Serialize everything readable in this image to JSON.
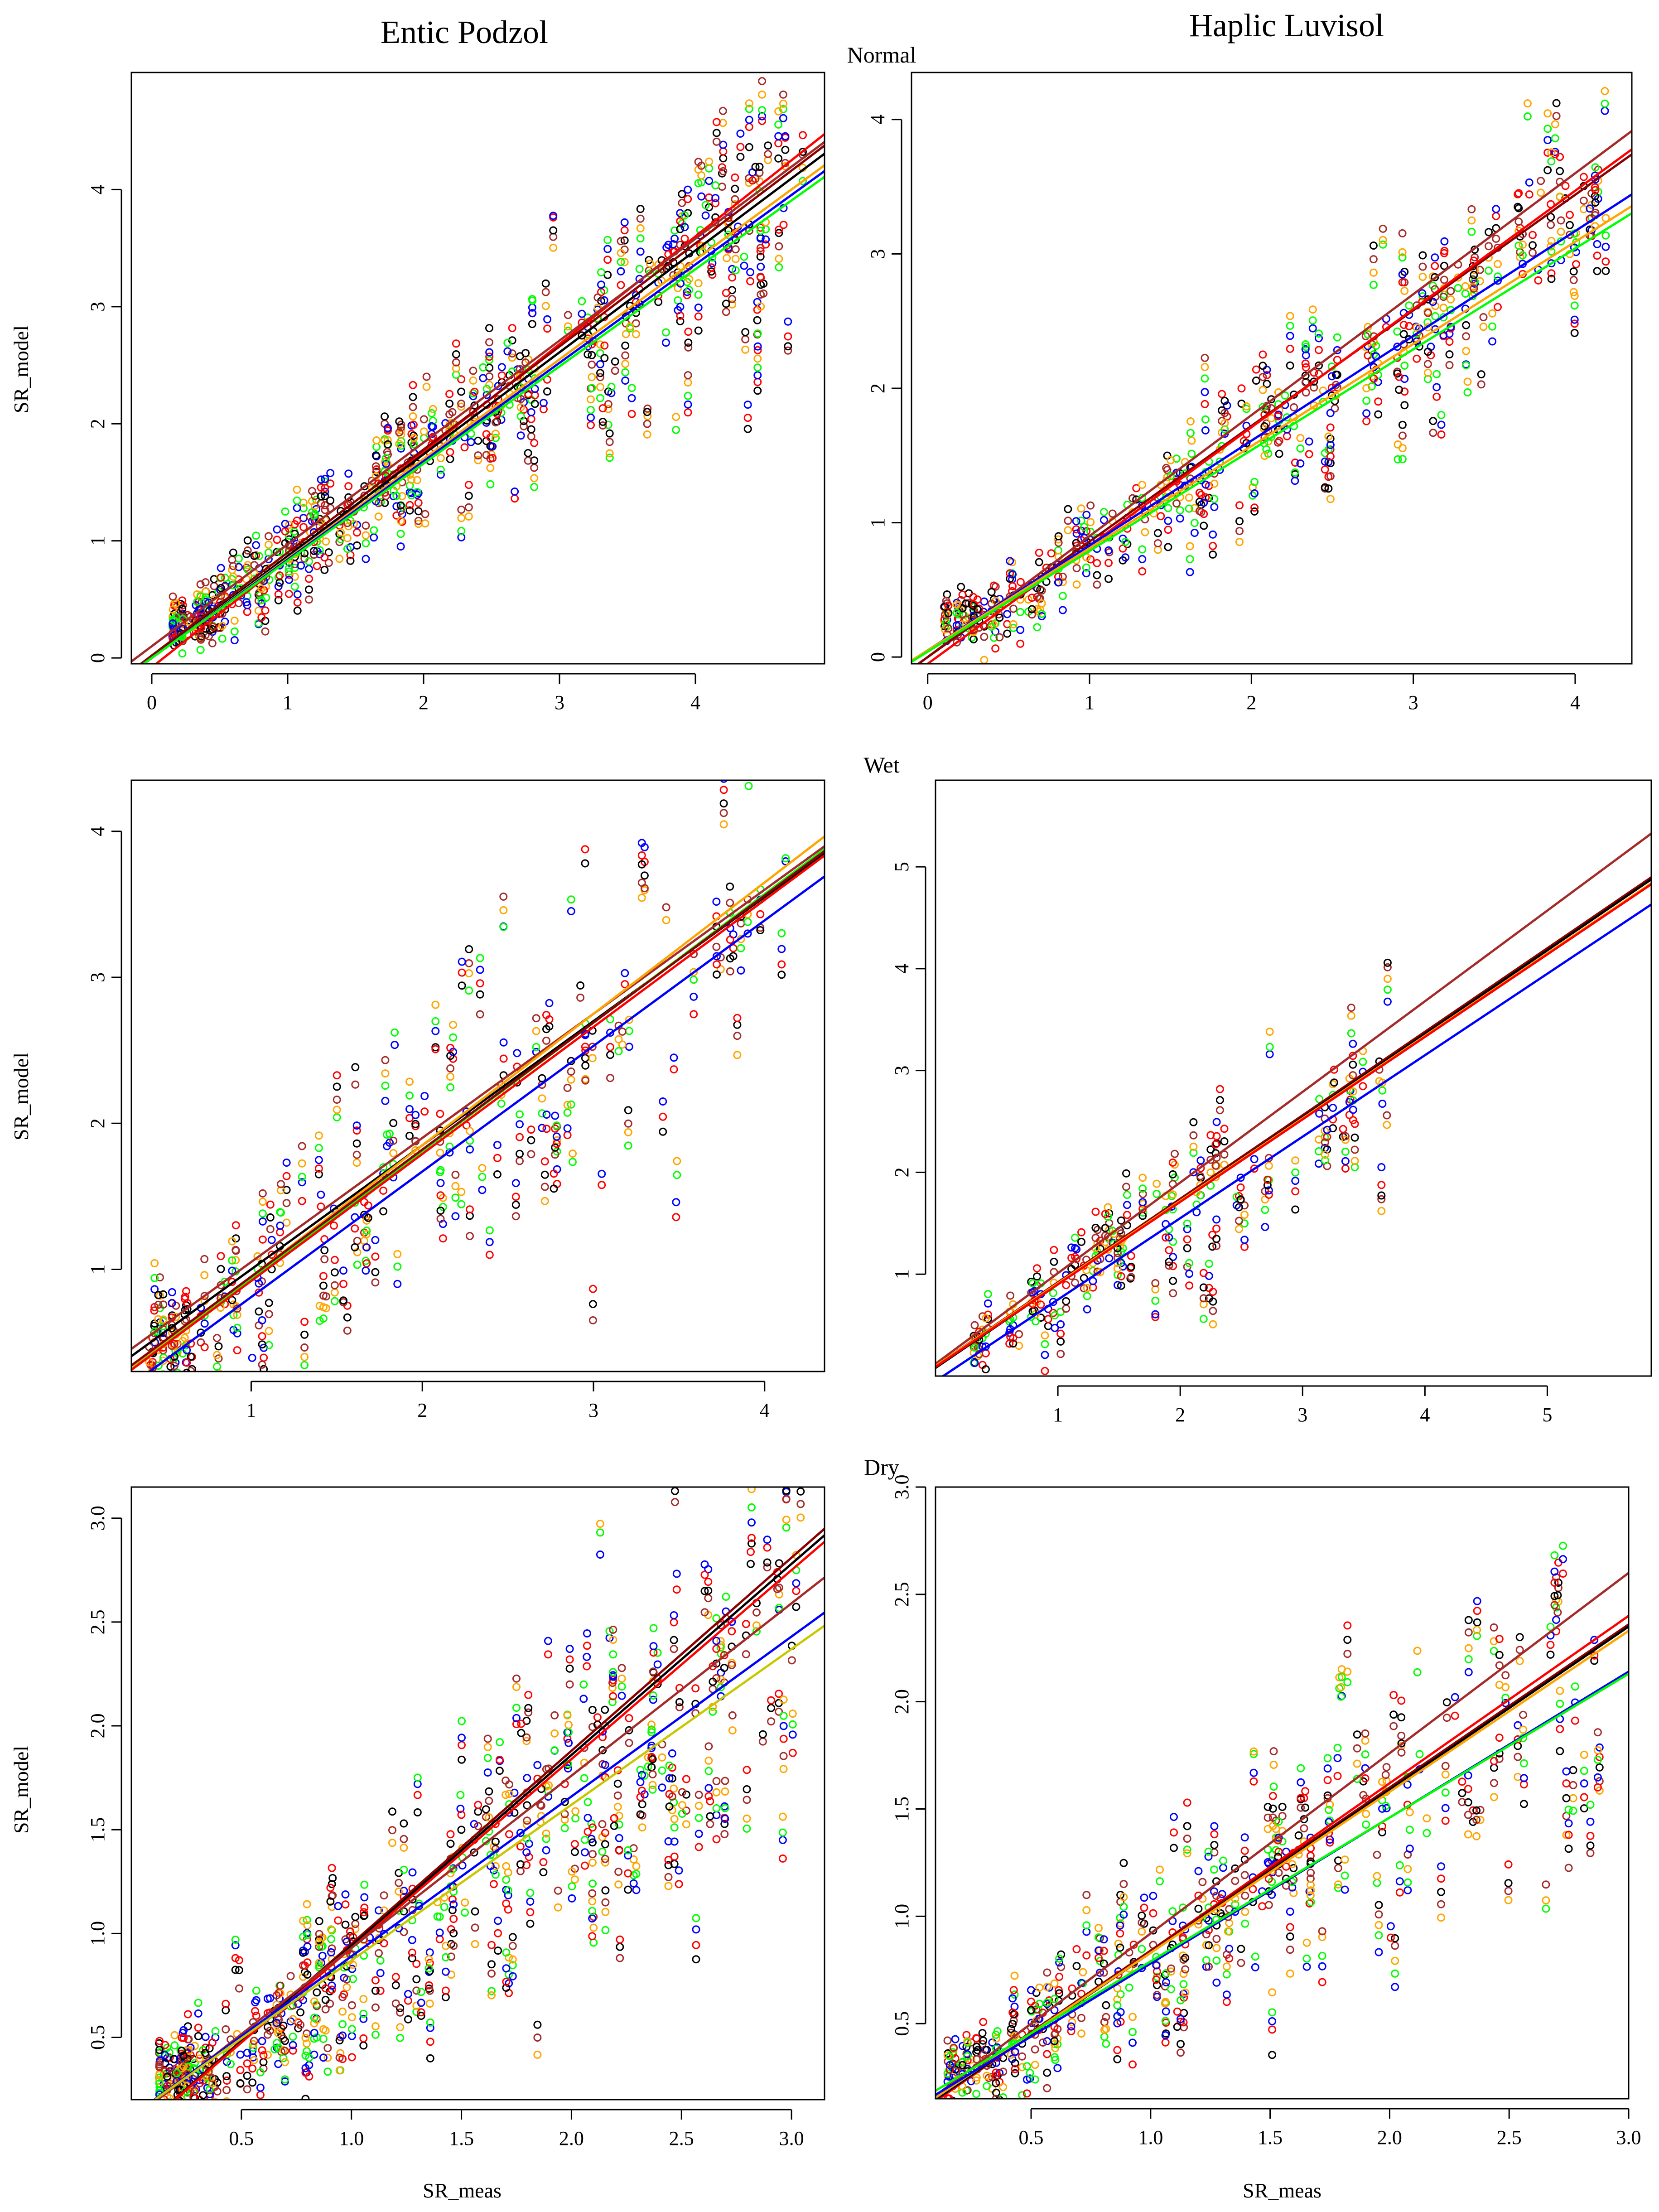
{
  "figure": {
    "column_titles": [
      "Entic Podzol",
      "Haplic Luvisol"
    ],
    "row_titles": [
      "Normal",
      "Wet",
      "Dry"
    ],
    "xlabel": "SR_meas",
    "ylabel": "SR_model"
  },
  "palette": {
    "black": "#000000",
    "red": "#ff0000",
    "blue": "#0000ff",
    "green": "#00ff00",
    "orange": "#ffa500",
    "brown": "#a52a2a",
    "darkred": "#8b0000",
    "olive": "#c8c800"
  },
  "chart_data": [
    {
      "type": "scatter",
      "id": "normal-entic",
      "title": "",
      "row": "Normal",
      "column": "Entic Podzol",
      "xlabel": "",
      "ylabel": "SR_model",
      "xlim": [
        -0.15,
        4.95
      ],
      "ylim": [
        -0.05,
        5.0
      ],
      "xticks": [
        0,
        1,
        2,
        3,
        4
      ],
      "yticks": [
        0,
        1,
        2,
        3,
        4
      ],
      "regression_lines": [
        {
          "color": "red",
          "slope": 0.92,
          "intercept": -0.08
        },
        {
          "color": "brown",
          "slope": 0.87,
          "intercept": 0.1
        },
        {
          "color": "darkred",
          "slope": 0.88,
          "intercept": 0.02
        },
        {
          "color": "black",
          "slope": 0.87,
          "intercept": 0.0
        },
        {
          "color": "orange",
          "slope": 0.85,
          "intercept": 0.0
        },
        {
          "color": "blue",
          "slope": 0.84,
          "intercept": 0.0
        },
        {
          "color": "green",
          "slope": 0.83,
          "intercept": 0.0
        }
      ],
      "points_spec": {
        "n": 300,
        "seed": 11,
        "slope": 0.85,
        "intercept": 0.05,
        "xmin": 0.15,
        "xmax": 4.8,
        "scale": 0.35,
        "noise": 0.55,
        "floor": 0.25,
        "stack": 0.1,
        "colors": [
          "black",
          "red",
          "blue",
          "green",
          "orange",
          "brown"
        ]
      }
    },
    {
      "type": "scatter",
      "id": "normal-haplic",
      "title": "",
      "row": "Normal",
      "column": "Haplic Luvisol",
      "xlabel": "",
      "ylabel": "",
      "xlim": [
        -0.1,
        4.35
      ],
      "ylim": [
        -0.05,
        4.35
      ],
      "xticks": [
        0,
        1,
        2,
        3,
        4
      ],
      "yticks": [
        0,
        1,
        2,
        3,
        4
      ],
      "regression_lines": [
        {
          "color": "brown",
          "slope": 0.9,
          "intercept": 0.0
        },
        {
          "color": "darkred",
          "slope": 0.86,
          "intercept": 0.0
        },
        {
          "color": "red",
          "slope": 0.88,
          "intercept": -0.05
        },
        {
          "color": "blue",
          "slope": 0.78,
          "intercept": 0.05
        },
        {
          "color": "orange",
          "slope": 0.76,
          "intercept": 0.05
        },
        {
          "color": "green",
          "slope": 0.75,
          "intercept": 0.04
        }
      ],
      "points_spec": {
        "n": 230,
        "seed": 23,
        "slope": 0.8,
        "intercept": 0.05,
        "xmin": 0.1,
        "xmax": 4.2,
        "scale": 0.3,
        "noise": 0.55,
        "floor": 0.25,
        "stack": 0.1,
        "colors": [
          "black",
          "red",
          "blue",
          "green",
          "orange",
          "brown"
        ]
      }
    },
    {
      "type": "scatter",
      "id": "wet-entic",
      "title": "",
      "row": "Wet",
      "column": "Entic Podzol",
      "xlabel": "",
      "ylabel": "SR_model",
      "xlim": [
        0.3,
        4.35
      ],
      "ylim": [
        0.3,
        4.35
      ],
      "xticks": [
        1,
        2,
        3,
        4
      ],
      "yticks": [
        1,
        2,
        3,
        4
      ],
      "regression_lines": [
        {
          "color": "brown",
          "slope": 0.85,
          "intercept": 0.2
        },
        {
          "color": "black",
          "slope": 0.85,
          "intercept": 0.15
        },
        {
          "color": "orange",
          "slope": 0.9,
          "intercept": 0.05
        },
        {
          "color": "green",
          "slope": 0.88,
          "intercept": 0.05
        },
        {
          "color": "red",
          "slope": 0.87,
          "intercept": 0.05
        },
        {
          "color": "darkred",
          "slope": 0.87,
          "intercept": 0.08
        },
        {
          "color": "blue",
          "slope": 0.86,
          "intercept": -0.05
        }
      ],
      "points_spec": {
        "n": 170,
        "seed": 37,
        "slope": 0.85,
        "intercept": 0.1,
        "xmin": 0.4,
        "xmax": 4.2,
        "scale": 0.55,
        "noise": 0.5,
        "floor": 0.35,
        "stack": 0.1,
        "colors": [
          "black",
          "red",
          "blue",
          "green",
          "orange",
          "brown"
        ]
      }
    },
    {
      "type": "scatter",
      "id": "wet-haplic",
      "title": "",
      "row": "Wet",
      "column": "Haplic Luvisol",
      "xlabel": "",
      "ylabel": "",
      "xlim": [
        0.0,
        5.85
      ],
      "ylim": [
        0.0,
        5.85
      ],
      "xticks": [
        1,
        2,
        3,
        4,
        5
      ],
      "yticks": [
        1,
        2,
        3,
        4,
        5
      ],
      "regression_lines": [
        {
          "color": "brown",
          "slope": 0.89,
          "intercept": 0.12
        },
        {
          "color": "darkred",
          "slope": 0.82,
          "intercept": 0.1
        },
        {
          "color": "black",
          "slope": 0.82,
          "intercept": 0.08
        },
        {
          "color": "orange",
          "slope": 0.81,
          "intercept": 0.1
        },
        {
          "color": "red",
          "slope": 0.81,
          "intercept": 0.09
        },
        {
          "color": "blue",
          "slope": 0.8,
          "intercept": -0.05
        }
      ],
      "points_spec": {
        "n": 110,
        "seed": 53,
        "slope": 0.82,
        "intercept": 0.05,
        "xmin": 0.3,
        "xmax": 3.7,
        "scale": 0.45,
        "noise": 0.55,
        "floor": 0.3,
        "stack": 0.12,
        "colors": [
          "black",
          "red",
          "blue",
          "green",
          "orange",
          "brown"
        ]
      }
    },
    {
      "type": "scatter",
      "id": "dry-entic",
      "title": "",
      "row": "Dry",
      "column": "Entic Podzol",
      "xlabel": "SR_meas",
      "ylabel": "SR_model",
      "xlim": [
        0.0,
        3.15
      ],
      "ylim": [
        0.2,
        3.15
      ],
      "xticks": [
        0.5,
        1.0,
        1.5,
        2.0,
        2.5,
        3.0
      ],
      "yticks": [
        0.5,
        1.0,
        1.5,
        2.0,
        2.5,
        3.0
      ],
      "tick_labels": [
        "0.5",
        "1.0",
        "1.5",
        "2.0",
        "2.5",
        "3.0"
      ],
      "regression_lines": [
        {
          "color": "darkred",
          "slope": 0.93,
          "intercept": 0.02
        },
        {
          "color": "black",
          "slope": 0.92,
          "intercept": 0.02
        },
        {
          "color": "red",
          "slope": 0.91,
          "intercept": 0.02
        },
        {
          "color": "brown",
          "slope": 0.83,
          "intercept": 0.1
        },
        {
          "color": "blue",
          "slope": 0.77,
          "intercept": 0.12
        },
        {
          "color": "olive",
          "slope": 0.75,
          "intercept": 0.12
        }
      ],
      "points_spec": {
        "n": 320,
        "seed": 71,
        "slope": 0.82,
        "intercept": 0.08,
        "xmin": 0.12,
        "xmax": 3.05,
        "scale": 0.45,
        "noise": 0.55,
        "floor": 0.28,
        "stack": 0.07,
        "colors": [
          "black",
          "red",
          "blue",
          "green",
          "orange",
          "brown"
        ]
      }
    },
    {
      "type": "scatter",
      "id": "dry-haplic",
      "title": "",
      "row": "Dry",
      "column": "Haplic Luvisol",
      "xlabel": "SR_meas",
      "ylabel": "",
      "xlim": [
        0.1,
        3.0
      ],
      "ylim": [
        0.15,
        3.0
      ],
      "xticks": [
        0.5,
        1.0,
        1.5,
        2.0,
        2.5,
        3.0
      ],
      "yticks": [
        0.5,
        1.0,
        1.5,
        2.0,
        2.5,
        3.0
      ],
      "tick_labels": [
        "0.5",
        "1.0",
        "1.5",
        "2.0",
        "2.5",
        "3.0"
      ],
      "regression_lines": [
        {
          "color": "brown",
          "slope": 0.84,
          "intercept": 0.08
        },
        {
          "color": "red",
          "slope": 0.78,
          "intercept": 0.06
        },
        {
          "color": "darkred",
          "slope": 0.76,
          "intercept": 0.08
        },
        {
          "color": "black",
          "slope": 0.76,
          "intercept": 0.07
        },
        {
          "color": "orange",
          "slope": 0.75,
          "intercept": 0.08
        },
        {
          "color": "blue",
          "slope": 0.68,
          "intercept": 0.1
        },
        {
          "color": "green",
          "slope": 0.67,
          "intercept": 0.12
        }
      ],
      "points_spec": {
        "n": 220,
        "seed": 89,
        "slope": 0.76,
        "intercept": 0.08,
        "xmin": 0.15,
        "xmax": 2.92,
        "scale": 0.4,
        "noise": 0.55,
        "floor": 0.25,
        "stack": 0.07,
        "colors": [
          "black",
          "red",
          "blue",
          "green",
          "orange",
          "brown"
        ]
      }
    }
  ]
}
